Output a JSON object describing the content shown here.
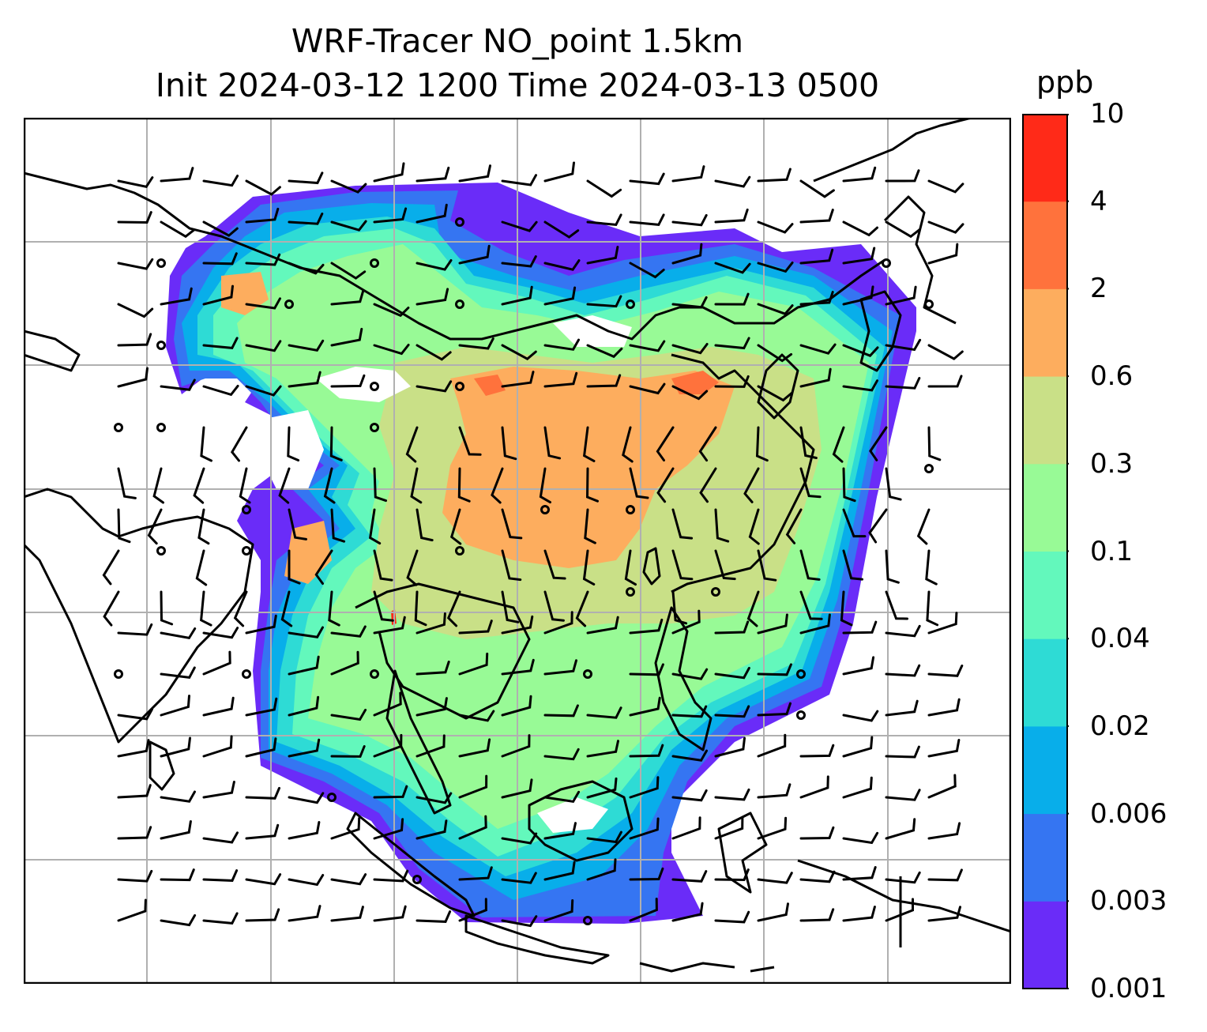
{
  "title": {
    "line1": "WRF-Tracer NO_point 1.5km",
    "line2": "Init 2024-03-12 1200 Time 2024-03-13 0500"
  },
  "colorbar": {
    "unit": "ppb",
    "tick_labels": [
      "0.001",
      "0.003",
      "0.006",
      "0.02",
      "0.04",
      "0.1",
      "0.3",
      "0.6",
      "2",
      "4",
      "10"
    ],
    "colors": [
      "#6a2cf8",
      "#3575f2",
      "#08aeea",
      "#2edbd5",
      "#63f8bc",
      "#98fa96",
      "#c9e087",
      "#fdad5e",
      "#ff723c",
      "#ff2a18"
    ]
  },
  "map": {
    "gridlines": true,
    "grid_color": "#b0b0b0",
    "coastline_color": "#000000",
    "wind_barb_color": "#000000",
    "calm_marker": "circle"
  }
}
